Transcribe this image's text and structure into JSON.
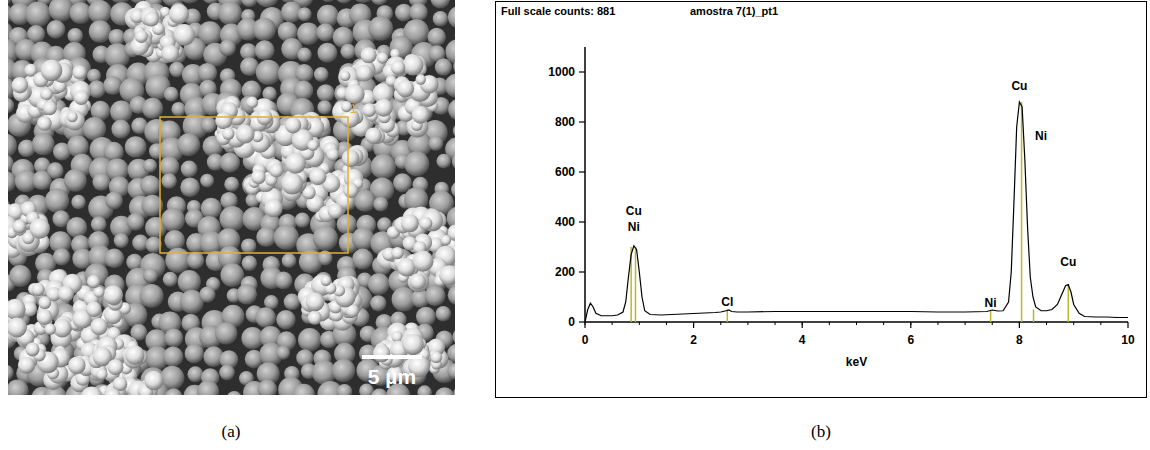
{
  "panel_labels": [
    "(a)",
    "(b)"
  ],
  "image_panel": {
    "scale_bar": "5 µm",
    "region_label": "1"
  },
  "chart_data": {
    "type": "line",
    "header": "Full scale counts: 881",
    "title": "amostra 7(1)_pt1",
    "x_label": "keV",
    "color": "#000000",
    "grid": false,
    "xlim": [
      0,
      10
    ],
    "xticks": [
      0,
      2,
      4,
      6,
      8,
      10
    ],
    "ylim": [
      0,
      1100
    ],
    "yticks": [
      0,
      200,
      400,
      600,
      800,
      1000
    ],
    "x": [
      0,
      0.05,
      0.1,
      0.15,
      0.2,
      0.3,
      0.4,
      0.5,
      0.6,
      0.7,
      0.75,
      0.8,
      0.85,
      0.9,
      0.95,
      1.0,
      1.05,
      1.1,
      1.2,
      1.4,
      1.6,
      1.8,
      2.0,
      2.2,
      2.4,
      2.5,
      2.6,
      2.65,
      2.7,
      2.8,
      3.0,
      3.5,
      4.0,
      4.5,
      5.0,
      5.5,
      6.0,
      6.5,
      7.0,
      7.4,
      7.5,
      7.6,
      7.7,
      7.8,
      7.85,
      7.9,
      7.95,
      8.0,
      8.05,
      8.1,
      8.15,
      8.2,
      8.25,
      8.3,
      8.4,
      8.5,
      8.6,
      8.7,
      8.8,
      8.85,
      8.9,
      8.95,
      9.0,
      9.1,
      9.2,
      9.4,
      9.6,
      9.8,
      10.0
    ],
    "values": [
      0,
      50,
      75,
      60,
      35,
      25,
      25,
      25,
      28,
      40,
      80,
      180,
      270,
      305,
      290,
      200,
      100,
      45,
      30,
      28,
      30,
      32,
      34,
      36,
      38,
      40,
      45,
      48,
      42,
      40,
      40,
      42,
      42,
      42,
      42,
      42,
      42,
      40,
      40,
      42,
      48,
      44,
      45,
      80,
      200,
      480,
      780,
      880,
      860,
      650,
      380,
      180,
      100,
      60,
      45,
      45,
      50,
      70,
      120,
      145,
      150,
      120,
      70,
      35,
      22,
      20,
      20,
      18,
      18
    ],
    "element_lines": [
      {
        "x": 0.85,
        "height": 300
      },
      {
        "x": 0.93,
        "height": 300
      },
      {
        "x": 2.62,
        "height": 50
      },
      {
        "x": 7.47,
        "height": 45
      },
      {
        "x": 8.04,
        "height": 880
      },
      {
        "x": 8.26,
        "height": 50
      },
      {
        "x": 8.9,
        "height": 150
      }
    ],
    "annotations": [
      {
        "text": "Cu",
        "x": 0.9,
        "y": 430
      },
      {
        "text": "Ni",
        "x": 0.9,
        "y": 365
      },
      {
        "text": "Cl",
        "x": 2.62,
        "y": 65
      },
      {
        "text": "Ni",
        "x": 7.47,
        "y": 60
      },
      {
        "text": "Cu",
        "x": 8.0,
        "y": 930
      },
      {
        "text": "Ni",
        "x": 8.4,
        "y": 730
      },
      {
        "text": "Cu",
        "x": 8.9,
        "y": 225
      }
    ]
  }
}
